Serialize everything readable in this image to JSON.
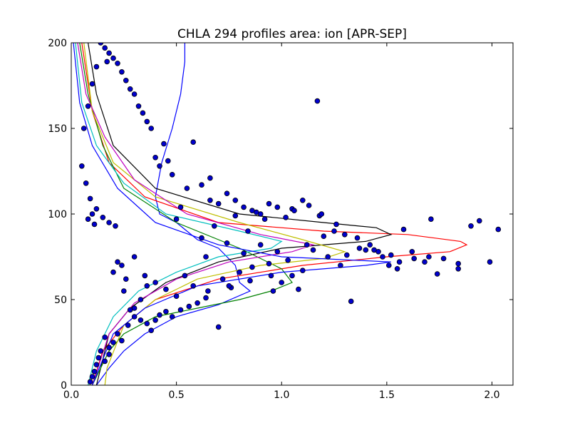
{
  "chart_data": {
    "type": "scatter",
    "title": "CHLA 294 profiles area: ion [APR-SEP]",
    "xlabel": "",
    "ylabel": "",
    "xlim": [
      0,
      2.1
    ],
    "ylim": [
      0,
      200
    ],
    "x_ticks": [
      0.0,
      0.5,
      1.0,
      1.5,
      2.0
    ],
    "x_tick_labels": [
      "0.0",
      "0.5",
      "1.0",
      "1.5",
      "2.0"
    ],
    "y_ticks": [
      0,
      50,
      100,
      150,
      200
    ],
    "y_tick_labels": [
      "0",
      "50",
      "100",
      "150",
      "200"
    ],
    "grid": false,
    "profile_count": 294,
    "colors": {
      "points_fill": "#0000cc",
      "points_edge": "#000000",
      "series_palette": [
        "#0000ff",
        "#008000",
        "#ff0000",
        "#00bfbf",
        "#bf00bf",
        "#bfbf00",
        "#000000"
      ]
    },
    "series": [
      {
        "color": "#0000ff",
        "values": [
          [
            0.54,
            200
          ],
          [
            0.54,
            189
          ],
          [
            0.52,
            170
          ],
          [
            0.48,
            150
          ],
          [
            0.43,
            130
          ],
          [
            0.4,
            110
          ],
          [
            0.42,
            100
          ],
          [
            0.5,
            95
          ],
          [
            0.6,
            85
          ],
          [
            0.7,
            80
          ],
          [
            0.78,
            70
          ],
          [
            0.8,
            60
          ],
          [
            0.85,
            55
          ],
          [
            0.7,
            47
          ],
          [
            0.5,
            40
          ],
          [
            0.35,
            30
          ],
          [
            0.25,
            20
          ],
          [
            0.18,
            10
          ],
          [
            0.12,
            0
          ]
        ]
      },
      {
        "color": "#ff0000",
        "values": [
          [
            0.05,
            200
          ],
          [
            0.1,
            160
          ],
          [
            0.18,
            130
          ],
          [
            0.35,
            110
          ],
          [
            0.7,
            95
          ],
          [
            1.2,
            90
          ],
          [
            1.6,
            88
          ],
          [
            1.85,
            84
          ],
          [
            1.88,
            82
          ],
          [
            1.8,
            78
          ],
          [
            1.5,
            75
          ],
          [
            1.1,
            70
          ],
          [
            0.7,
            62
          ],
          [
            0.4,
            50
          ],
          [
            0.25,
            35
          ],
          [
            0.15,
            20
          ],
          [
            0.1,
            0
          ]
        ]
      },
      {
        "color": "#000000",
        "values": [
          [
            0.08,
            200
          ],
          [
            0.12,
            170
          ],
          [
            0.2,
            140
          ],
          [
            0.4,
            115
          ],
          [
            0.8,
            100
          ],
          [
            1.2,
            95
          ],
          [
            1.45,
            92
          ],
          [
            1.52,
            88
          ],
          [
            1.4,
            84
          ],
          [
            1.0,
            80
          ],
          [
            0.7,
            72
          ],
          [
            0.45,
            60
          ],
          [
            0.28,
            45
          ],
          [
            0.18,
            30
          ],
          [
            0.12,
            0
          ]
        ]
      },
      {
        "color": "#008000",
        "values": [
          [
            0.04,
            200
          ],
          [
            0.08,
            170
          ],
          [
            0.15,
            140
          ],
          [
            0.25,
            115
          ],
          [
            0.5,
            95
          ],
          [
            0.8,
            80
          ],
          [
            1.0,
            68
          ],
          [
            1.05,
            60
          ],
          [
            0.95,
            55
          ],
          [
            0.8,
            50
          ],
          [
            0.6,
            45
          ],
          [
            0.4,
            40
          ],
          [
            0.25,
            30
          ],
          [
            0.18,
            20
          ],
          [
            0.1,
            0
          ]
        ]
      },
      {
        "color": "#bfbf00",
        "values": [
          [
            0.06,
            200
          ],
          [
            0.1,
            160
          ],
          [
            0.2,
            130
          ],
          [
            0.4,
            110
          ],
          [
            0.8,
            95
          ],
          [
            1.1,
            85
          ],
          [
            1.3,
            78
          ],
          [
            1.2,
            74
          ],
          [
            0.9,
            70
          ],
          [
            0.6,
            62
          ],
          [
            0.4,
            50
          ],
          [
            0.25,
            35
          ],
          [
            0.17,
            10
          ],
          [
            0.16,
            0
          ]
        ]
      },
      {
        "color": "#00bfbf",
        "values": [
          [
            0.02,
            200
          ],
          [
            0.05,
            165
          ],
          [
            0.12,
            140
          ],
          [
            0.25,
            118
          ],
          [
            0.45,
            100
          ],
          [
            0.8,
            90
          ],
          [
            1.0,
            84
          ],
          [
            0.95,
            80
          ],
          [
            0.7,
            75
          ],
          [
            0.5,
            66
          ],
          [
            0.32,
            55
          ],
          [
            0.2,
            40
          ],
          [
            0.12,
            20
          ],
          [
            0.08,
            0
          ]
        ]
      },
      {
        "color": "#bf00bf",
        "values": [
          [
            0.03,
            200
          ],
          [
            0.07,
            170
          ],
          [
            0.16,
            145
          ],
          [
            0.3,
            120
          ],
          [
            0.55,
            100
          ],
          [
            0.9,
            88
          ],
          [
            1.15,
            82
          ],
          [
            1.05,
            78
          ],
          [
            0.75,
            72
          ],
          [
            0.5,
            62
          ],
          [
            0.3,
            48
          ],
          [
            0.18,
            30
          ],
          [
            0.1,
            0
          ]
        ]
      },
      {
        "color": "#0000ff",
        "values": [
          [
            0.01,
            200
          ],
          [
            0.04,
            165
          ],
          [
            0.1,
            140
          ],
          [
            0.22,
            115
          ],
          [
            0.4,
            95
          ],
          [
            0.7,
            82
          ],
          [
            1.0,
            75
          ],
          [
            1.52,
            72
          ],
          [
            1.4,
            70
          ],
          [
            1.0,
            66
          ],
          [
            0.6,
            58
          ],
          [
            0.35,
            45
          ],
          [
            0.2,
            30
          ],
          [
            0.1,
            0
          ]
        ]
      }
    ],
    "points": [
      [
        1.17,
        166
      ],
      [
        2.03,
        91
      ],
      [
        1.99,
        72
      ],
      [
        1.94,
        96
      ],
      [
        1.9,
        93
      ],
      [
        1.84,
        71
      ],
      [
        1.84,
        68
      ],
      [
        1.77,
        74
      ],
      [
        1.74,
        65
      ],
      [
        1.71,
        97
      ],
      [
        1.7,
        75
      ],
      [
        1.68,
        72
      ],
      [
        1.63,
        74
      ],
      [
        1.58,
        91
      ],
      [
        1.55,
        68
      ],
      [
        1.51,
        70
      ],
      [
        1.48,
        75
      ],
      [
        1.44,
        79
      ],
      [
        1.4,
        79
      ],
      [
        1.37,
        80
      ],
      [
        1.33,
        49
      ],
      [
        1.31,
        76
      ],
      [
        1.28,
        70
      ],
      [
        1.26,
        94
      ],
      [
        1.22,
        75
      ],
      [
        1.2,
        87
      ],
      [
        1.18,
        99
      ],
      [
        1.15,
        79
      ],
      [
        1.12,
        82
      ],
      [
        1.1,
        108
      ],
      [
        1.08,
        56
      ],
      [
        1.05,
        103
      ],
      [
        1.03,
        73
      ],
      [
        1.0,
        60
      ],
      [
        0.98,
        78
      ],
      [
        0.96,
        55
      ],
      [
        0.94,
        71
      ],
      [
        0.92,
        97
      ],
      [
        0.9,
        82
      ],
      [
        0.88,
        101
      ],
      [
        0.86,
        69
      ],
      [
        0.84,
        90
      ],
      [
        0.82,
        77
      ],
      [
        0.8,
        66
      ],
      [
        0.78,
        99
      ],
      [
        0.76,
        57
      ],
      [
        0.74,
        83
      ],
      [
        0.72,
        62
      ],
      [
        0.7,
        34
      ],
      [
        0.68,
        93
      ],
      [
        0.66,
        121
      ],
      [
        0.64,
        75
      ],
      [
        0.62,
        117
      ],
      [
        0.58,
        142
      ],
      [
        0.55,
        115
      ],
      [
        0.52,
        104
      ],
      [
        0.5,
        97
      ],
      [
        0.48,
        123
      ],
      [
        0.46,
        131
      ],
      [
        0.44,
        141
      ],
      [
        0.42,
        128
      ],
      [
        0.4,
        133
      ],
      [
        0.38,
        150
      ],
      [
        0.36,
        154
      ],
      [
        0.34,
        159
      ],
      [
        0.32,
        163
      ],
      [
        0.3,
        170
      ],
      [
        0.28,
        173
      ],
      [
        0.26,
        178
      ],
      [
        0.24,
        183
      ],
      [
        0.22,
        188
      ],
      [
        0.2,
        191
      ],
      [
        0.18,
        194
      ],
      [
        0.17,
        189
      ],
      [
        0.16,
        197
      ],
      [
        0.14,
        200
      ],
      [
        0.12,
        186
      ],
      [
        0.1,
        176
      ],
      [
        0.08,
        163
      ],
      [
        0.06,
        150
      ],
      [
        0.05,
        128
      ],
      [
        0.07,
        118
      ],
      [
        0.09,
        109
      ],
      [
        0.12,
        103
      ],
      [
        0.15,
        98
      ],
      [
        0.18,
        95
      ],
      [
        0.21,
        93
      ],
      [
        0.1,
        100
      ],
      [
        0.08,
        97
      ],
      [
        0.11,
        94
      ],
      [
        0.25,
        55
      ],
      [
        0.28,
        44
      ],
      [
        0.3,
        40
      ],
      [
        0.33,
        38
      ],
      [
        0.36,
        36
      ],
      [
        0.38,
        32
      ],
      [
        0.4,
        38
      ],
      [
        0.42,
        41
      ],
      [
        0.45,
        43
      ],
      [
        0.48,
        40
      ],
      [
        0.52,
        44
      ],
      [
        0.56,
        46
      ],
      [
        0.6,
        48
      ],
      [
        0.64,
        51
      ],
      [
        0.22,
        30
      ],
      [
        0.2,
        25
      ],
      [
        0.18,
        22
      ],
      [
        0.16,
        28
      ],
      [
        0.14,
        20
      ],
      [
        0.13,
        16
      ],
      [
        0.12,
        12
      ],
      [
        0.11,
        8
      ],
      [
        0.1,
        5
      ],
      [
        0.09,
        2
      ],
      [
        0.16,
        14
      ],
      [
        0.18,
        18
      ],
      [
        0.24,
        26
      ],
      [
        0.27,
        35
      ],
      [
        0.3,
        45
      ],
      [
        0.33,
        50
      ],
      [
        0.36,
        58
      ],
      [
        0.26,
        62
      ],
      [
        0.24,
        70
      ],
      [
        0.22,
        72
      ],
      [
        0.2,
        66
      ],
      [
        0.3,
        75
      ],
      [
        0.35,
        64
      ],
      [
        0.4,
        60
      ],
      [
        0.45,
        56
      ],
      [
        0.5,
        52
      ],
      [
        0.54,
        64
      ],
      [
        0.58,
        58
      ],
      [
        0.62,
        86
      ],
      [
        0.66,
        108
      ],
      [
        0.7,
        106
      ],
      [
        0.74,
        112
      ],
      [
        0.78,
        108
      ],
      [
        0.82,
        104
      ],
      [
        0.86,
        102
      ],
      [
        0.9,
        100
      ],
      [
        0.94,
        106
      ],
      [
        0.98,
        104
      ],
      [
        1.02,
        98
      ],
      [
        1.06,
        102
      ],
      [
        1.13,
        105
      ],
      [
        1.19,
        100
      ],
      [
        1.25,
        90
      ],
      [
        1.3,
        88
      ],
      [
        1.36,
        86
      ],
      [
        1.42,
        82
      ],
      [
        1.46,
        78
      ],
      [
        1.52,
        76
      ],
      [
        1.56,
        72
      ],
      [
        1.62,
        78
      ],
      [
        1.05,
        64
      ],
      [
        1.1,
        67
      ],
      [
        0.95,
        64
      ],
      [
        0.85,
        61
      ],
      [
        0.75,
        58
      ],
      [
        0.65,
        55
      ]
    ]
  }
}
